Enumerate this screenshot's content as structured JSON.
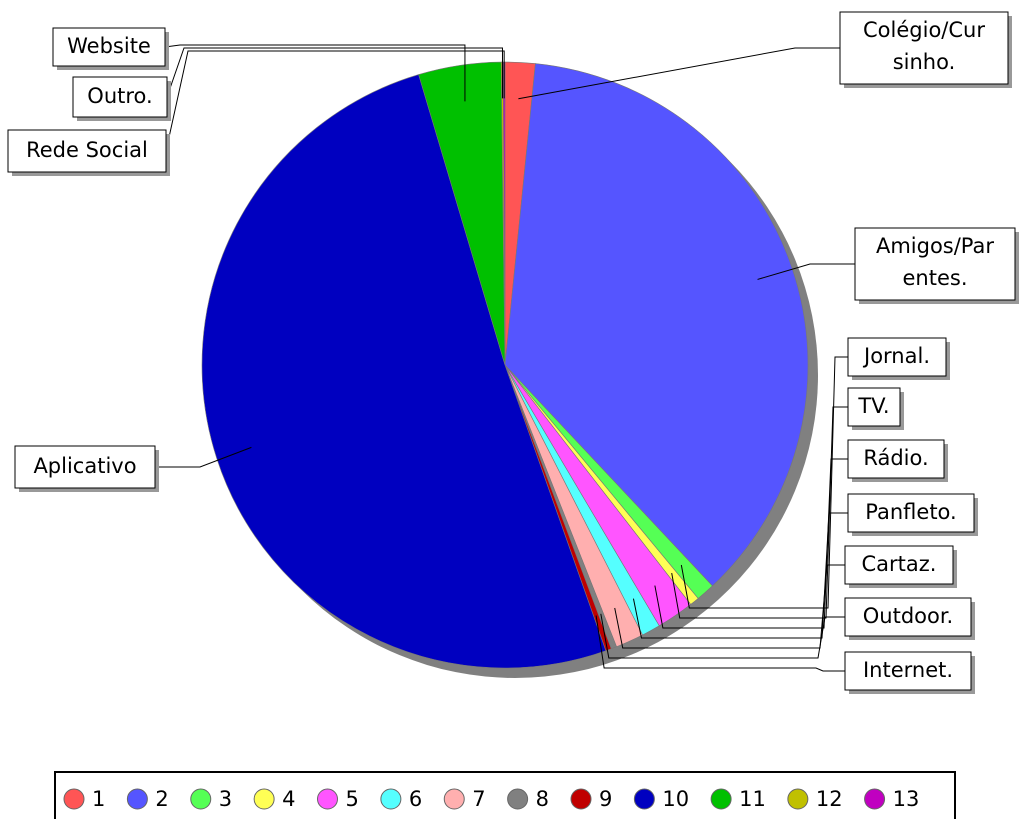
{
  "chart_data": {
    "type": "pie",
    "categories": [
      "Colégio/Cursinho.",
      "Amigos/Parentes.",
      "Jornal.",
      "TV.",
      "Rádio.",
      "Panfleto.",
      "Cartaz.",
      "Outdoor.",
      "Internet.",
      "Aplicativo",
      "Website",
      "Outro.",
      "Rede Social"
    ],
    "values": [
      1.6,
      36.4,
      1.0,
      0.5,
      2.0,
      1.0,
      1.5,
      0.3,
      0.3,
      50.8,
      4.4,
      0.1,
      0.1
    ],
    "colors": [
      "#ff5555",
      "#5555ff",
      "#55ff55",
      "#ffff55",
      "#ff55ff",
      "#55ffff",
      "#ffafaf",
      "#808080",
      "#c00000",
      "#0000c0",
      "#00c000",
      "#c0c000",
      "#c000c0"
    ],
    "legend": [
      "1",
      "2",
      "3",
      "4",
      "5",
      "6",
      "7",
      "8",
      "9",
      "10",
      "11",
      "12",
      "13"
    ]
  }
}
